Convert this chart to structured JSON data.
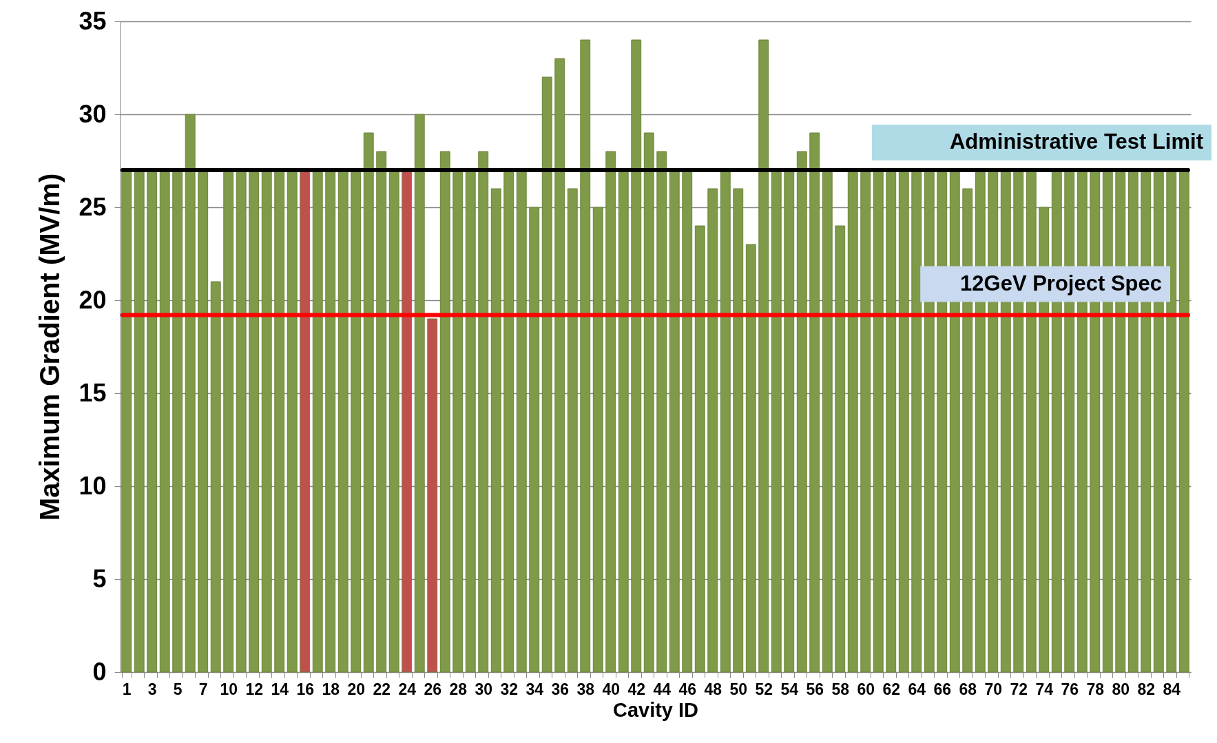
{
  "chart_data": {
    "type": "bar",
    "xlabel": "Cavity ID",
    "ylabel": "Maximum Gradient (MV/m)",
    "categories": [
      "1",
      null,
      "3",
      null,
      "5",
      null,
      "7",
      null,
      "10",
      null,
      "12",
      null,
      "14",
      null,
      "16",
      null,
      "18",
      null,
      "20",
      null,
      "22",
      null,
      "24",
      null,
      "26",
      null,
      "28",
      null,
      "30",
      null,
      "32",
      null,
      "34",
      null,
      "36",
      null,
      "38",
      null,
      "40",
      null,
      "42",
      null,
      "44",
      null,
      "46",
      null,
      "48",
      null,
      "50",
      null,
      "52",
      null,
      "54",
      null,
      "56",
      null,
      "58",
      null,
      "60",
      null,
      "62",
      null,
      "64",
      null,
      "66",
      null,
      "68",
      null,
      "70",
      null,
      "72",
      null,
      "74",
      null,
      "76",
      null,
      "78",
      null,
      "80",
      null,
      "82",
      null,
      "84",
      null
    ],
    "values": [
      27,
      27,
      27,
      27,
      27,
      30,
      27,
      21,
      27,
      27,
      27,
      27,
      27,
      27,
      27,
      27,
      27,
      27,
      27,
      29,
      28,
      27,
      27,
      30,
      19,
      28,
      27,
      27,
      28,
      26,
      27,
      27,
      25,
      32,
      33,
      26,
      34,
      25,
      28,
      27,
      34,
      29,
      28,
      27,
      27,
      24,
      26,
      27,
      26,
      23,
      34,
      27,
      27,
      28,
      29,
      27,
      24,
      27,
      27,
      27,
      27,
      27,
      27,
      27,
      27,
      27,
      26,
      27,
      27,
      27,
      27,
      27,
      25,
      27,
      27,
      27,
      27,
      27,
      27,
      27,
      27,
      27,
      27,
      27
    ],
    "colors": [
      "#7f9a48",
      "#7f9a48",
      "#7f9a48",
      "#7f9a48",
      "#7f9a48",
      "#7f9a48",
      "#7f9a48",
      "#7f9a48",
      "#7f9a48",
      "#7f9a48",
      "#7f9a48",
      "#7f9a48",
      "#7f9a48",
      "#7f9a48",
      "#c0504d",
      "#7f9a48",
      "#7f9a48",
      "#7f9a48",
      "#7f9a48",
      "#7f9a48",
      "#7f9a48",
      "#7f9a48",
      "#c0504d",
      "#7f9a48",
      "#c0504d",
      "#7f9a48",
      "#7f9a48",
      "#7f9a48",
      "#7f9a48",
      "#7f9a48",
      "#7f9a48",
      "#7f9a48",
      "#7f9a48",
      "#7f9a48",
      "#7f9a48",
      "#7f9a48",
      "#7f9a48",
      "#7f9a48",
      "#7f9a48",
      "#7f9a48",
      "#7f9a48",
      "#7f9a48",
      "#7f9a48",
      "#7f9a48",
      "#7f9a48",
      "#7f9a48",
      "#7f9a48",
      "#7f9a48",
      "#7f9a48",
      "#7f9a48",
      "#7f9a48",
      "#7f9a48",
      "#7f9a48",
      "#7f9a48",
      "#7f9a48",
      "#7f9a48",
      "#7f9a48",
      "#7f9a48",
      "#7f9a48",
      "#7f9a48",
      "#7f9a48",
      "#7f9a48",
      "#7f9a48",
      "#7f9a48",
      "#7f9a48",
      "#7f9a48",
      "#7f9a48",
      "#7f9a48",
      "#7f9a48",
      "#7f9a48",
      "#7f9a48",
      "#7f9a48",
      "#7f9a48",
      "#7f9a48",
      "#7f9a48",
      "#7f9a48",
      "#7f9a48",
      "#7f9a48",
      "#7f9a48",
      "#7f9a48",
      "#7f9a48",
      "#7f9a48",
      "#7f9a48",
      "#7f9a48"
    ],
    "ylim": [
      0,
      35
    ],
    "yticks": [
      0,
      5,
      10,
      15,
      20,
      25,
      30,
      35
    ],
    "grid": "y",
    "ref_lines": [
      {
        "axis": "y",
        "value": 27,
        "label": "Administrative Test Limit",
        "color": "#000000"
      },
      {
        "axis": "y",
        "value": 19.2,
        "label": "12GeV Project Spec",
        "color": "#ff0000"
      }
    ]
  }
}
